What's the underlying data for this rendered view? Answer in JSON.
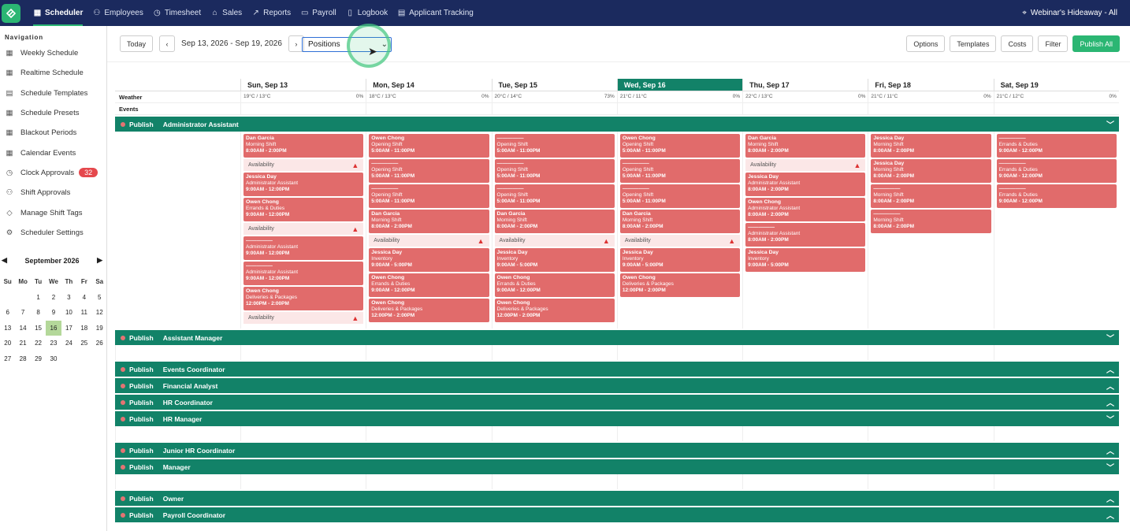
{
  "topbar": {
    "nav": [
      {
        "label": "Scheduler",
        "icon": "calendar-icon",
        "active": true
      },
      {
        "label": "Employees",
        "icon": "user-icon"
      },
      {
        "label": "Timesheet",
        "icon": "clock-icon"
      },
      {
        "label": "Sales",
        "icon": "sales-icon"
      },
      {
        "label": "Reports",
        "icon": "chart-icon"
      },
      {
        "label": "Payroll",
        "icon": "payroll-icon"
      },
      {
        "label": "Logbook",
        "icon": "book-icon"
      },
      {
        "label": "Applicant Tracking",
        "icon": "clipboard-icon"
      }
    ],
    "location": "Webinar's Hideaway - All"
  },
  "sidebar": {
    "heading": "Navigation",
    "items": [
      {
        "label": "Weekly Schedule"
      },
      {
        "label": "Realtime Schedule"
      },
      {
        "label": "Schedule Templates"
      },
      {
        "label": "Schedule Presets"
      },
      {
        "label": "Blackout Periods"
      },
      {
        "label": "Calendar Events"
      },
      {
        "label": "Clock Approvals",
        "badge": "32"
      },
      {
        "label": "Shift Approvals"
      },
      {
        "label": "Manage Shift Tags"
      },
      {
        "label": "Scheduler Settings"
      }
    ],
    "calendar": {
      "month": "September 2026",
      "weekdays": [
        "Su",
        "Mo",
        "Tu",
        "We",
        "Th",
        "Fr",
        "Sa"
      ],
      "weeks": [
        [
          "",
          "",
          "1",
          "2",
          "3",
          "4",
          "5"
        ],
        [
          "6",
          "7",
          "8",
          "9",
          "10",
          "11",
          "12"
        ],
        [
          "13",
          "14",
          "15",
          "16",
          "17",
          "18",
          "19"
        ],
        [
          "20",
          "21",
          "22",
          "23",
          "24",
          "25",
          "26"
        ],
        [
          "27",
          "28",
          "29",
          "30",
          "",
          "",
          ""
        ]
      ],
      "today": "16"
    }
  },
  "toolbar": {
    "today": "Today",
    "range": "Sep 13, 2026 - Sep 19, 2026",
    "select": "Positions",
    "options": "Options",
    "templates": "Templates",
    "costs": "Costs",
    "filter": "Filter",
    "publish_all": "Publish All"
  },
  "days": [
    "Sun, Sep 13",
    "Mon, Sep 14",
    "Tue, Sep 15",
    "Wed, Sep 16",
    "Thu, Sep 17",
    "Fri, Sep 18",
    "Sat, Sep 19"
  ],
  "weather_label": "Weather",
  "events_label": "Events",
  "weather": [
    [
      "19°C / 13°C",
      "0%"
    ],
    [
      "18°C / 13°C",
      "0%"
    ],
    [
      "20°C / 14°C",
      "73%"
    ],
    [
      "21°C / 11°C",
      "0%"
    ],
    [
      "22°C / 13°C",
      "0%"
    ],
    [
      "21°C / 11°C",
      "0%"
    ],
    [
      "21°C / 12°C",
      "0%"
    ]
  ],
  "publish_label": "Publish",
  "positions": [
    "Administrator Assistant",
    "Assistant Manager",
    "Events Coordinator",
    "Financial Analyst",
    "HR Coordinator",
    "HR Manager",
    "Junior HR Coordinator",
    "Manager",
    "Owner",
    "Payroll Coordinator"
  ],
  "shifts": [
    [
      [
        "Dan Garcia",
        "Morning Shift",
        "8:00AM - 2:00PM"
      ],
      [
        "Availability"
      ],
      [
        "Jessica Day",
        "Administrator Assistant",
        "9:00AM - 12:00PM"
      ],
      [
        "Owen Chong",
        "Errands & Duties",
        "9:00AM - 12:00PM"
      ],
      [
        "Availability"
      ],
      [
        "—————",
        "Administrator Assistant",
        "9:00AM - 12:00PM"
      ],
      [
        "—————",
        "Administrator Assistant",
        "9:00AM - 12:00PM"
      ],
      [
        "Owen Chong",
        "Deliveries & Packages",
        "12:00PM - 2:00PM"
      ],
      [
        "Availability"
      ]
    ],
    [
      [
        "Owen Chong",
        "Opening Shift",
        "5:00AM - 11:00PM"
      ],
      [
        "—————",
        "Opening Shift",
        "5:00AM - 11:00PM"
      ],
      [
        "—————",
        "Opening Shift",
        "5:00AM - 11:00PM"
      ],
      [
        "Dan Garcia",
        "Morning Shift",
        "8:00AM - 2:00PM"
      ],
      [
        "Availability"
      ],
      [
        "Jessica Day",
        "Inventory",
        "9:00AM - 5:00PM"
      ],
      [
        "Owen Chong",
        "Errands & Duties",
        "9:00AM - 12:00PM"
      ],
      [
        "Owen Chong",
        "Deliveries & Packages",
        "12:00PM - 2:00PM"
      ]
    ],
    [
      [
        "—————",
        "Opening Shift",
        "5:00AM - 11:00PM"
      ],
      [
        "—————",
        "Opening Shift",
        "5:00AM - 11:00PM"
      ],
      [
        "—————",
        "Opening Shift",
        "5:00AM - 11:00PM"
      ],
      [
        "Dan Garcia",
        "Morning Shift",
        "8:00AM - 2:00PM"
      ],
      [
        "Availability"
      ],
      [
        "Jessica Day",
        "Inventory",
        "9:00AM - 5:00PM"
      ],
      [
        "Owen Chong",
        "Errands & Duties",
        "9:00AM - 12:00PM"
      ],
      [
        "Owen Chong",
        "Deliveries & Packages",
        "12:00PM - 2:00PM"
      ]
    ],
    [
      [
        "Owen Chong",
        "Opening Shift",
        "5:00AM - 11:00PM"
      ],
      [
        "—————",
        "Opening Shift",
        "5:00AM - 11:00PM"
      ],
      [
        "—————",
        "Opening Shift",
        "5:00AM - 11:00PM"
      ],
      [
        "Dan Garcia",
        "Morning Shift",
        "8:00AM - 2:00PM"
      ],
      [
        "Availability"
      ],
      [
        "Jessica Day",
        "Inventory",
        "9:00AM - 5:00PM"
      ],
      [
        "Owen Chong",
        "Deliveries & Packages",
        "12:00PM - 2:00PM"
      ]
    ],
    [
      [
        "Dan Garcia",
        "Morning Shift",
        "8:00AM - 2:00PM"
      ],
      [
        "Availability"
      ],
      [
        "Jessica Day",
        "Administrator Assistant",
        "8:00AM - 2:00PM"
      ],
      [
        "Owen Chong",
        "Administrator Assistant",
        "8:00AM - 2:00PM"
      ],
      [
        "—————",
        "Administrator Assistant",
        "8:00AM - 2:00PM"
      ],
      [
        "Jessica Day",
        "Inventory",
        "9:00AM - 5:00PM"
      ]
    ],
    [
      [
        "Jessica Day",
        "Morning Shift",
        "8:00AM - 2:00PM"
      ],
      [
        "Jessica Day",
        "Morning Shift",
        "8:00AM - 2:00PM"
      ],
      [
        "—————",
        "Morning Shift",
        "8:00AM - 2:00PM"
      ],
      [
        "—————",
        "Morning Shift",
        "8:00AM - 2:00PM"
      ]
    ],
    [
      [
        "—————",
        "Errands & Duties",
        "9:00AM - 12:00PM"
      ],
      [
        "—————",
        "Errands & Duties",
        "9:00AM - 12:00PM"
      ],
      [
        "—————",
        "Errands & Duties",
        "9:00AM - 12:00PM"
      ]
    ]
  ]
}
